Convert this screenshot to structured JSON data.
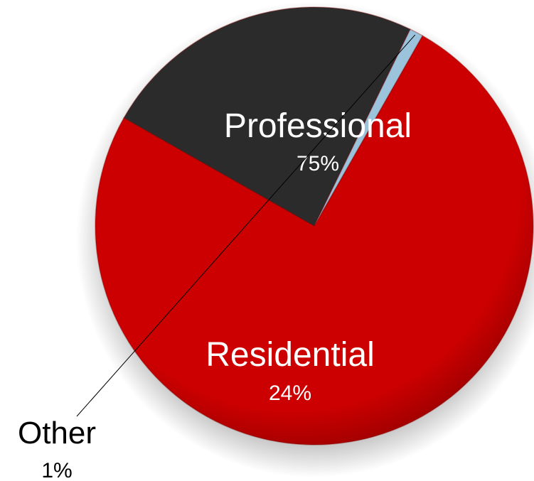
{
  "chart_data": {
    "type": "pie",
    "title": "",
    "slices": [
      {
        "label": "Professional",
        "value": 75,
        "display": "75%",
        "color": "#cc0000"
      },
      {
        "label": "Residential",
        "value": 24,
        "display": "24%",
        "color": "#2b2b2b"
      },
      {
        "label": "Other",
        "value": 1,
        "display": "1%",
        "color": "#9cc3dc"
      }
    ],
    "label_colors": {
      "Professional": "#ffffff",
      "Residential": "#ffffff",
      "Other": "#000000"
    }
  }
}
